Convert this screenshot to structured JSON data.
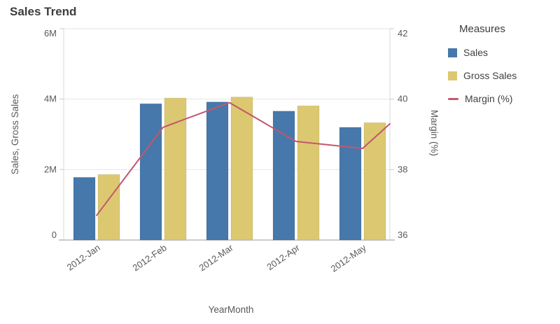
{
  "title": "Sales Trend",
  "legend": {
    "title": "Measures",
    "items": [
      {
        "label": "Sales",
        "swatch": "square",
        "color": "#4678ab"
      },
      {
        "label": "Gross Sales",
        "swatch": "square",
        "color": "#dcc870"
      },
      {
        "label": "Margin (%)",
        "swatch": "line",
        "color": "#c4566e"
      }
    ]
  },
  "chart_data": {
    "type": "combo",
    "title": "Sales Trend",
    "categories": [
      "2012-Jan",
      "2012-Feb",
      "2012-Mar",
      "2012-Apr",
      "2012-May"
    ],
    "x_axis": {
      "title": "YearMonth"
    },
    "left_axis": {
      "title": "Sales, Gross Sales",
      "tick_labels": [
        "0",
        "2M",
        "4M",
        "6M"
      ],
      "tick_values": [
        0,
        2000000,
        4000000,
        6000000
      ],
      "range": [
        0,
        6000000
      ]
    },
    "right_axis": {
      "title": "Margin (%)",
      "tick_labels": [
        "36",
        "38",
        "40",
        "42"
      ],
      "tick_values": [
        36,
        38,
        40,
        42
      ],
      "range": [
        36,
        42
      ]
    },
    "series": [
      {
        "name": "Sales",
        "type": "bar",
        "axis": "left",
        "color": "#4678ab",
        "values": [
          1780000,
          3870000,
          3920000,
          3660000,
          3200000
        ]
      },
      {
        "name": "Gross Sales",
        "type": "bar",
        "axis": "left",
        "color": "#dcc870",
        "values": [
          1860000,
          4030000,
          4060000,
          3810000,
          3330000
        ]
      },
      {
        "name": "Margin (%)",
        "type": "line",
        "axis": "right",
        "color": "#c4566e",
        "values": [
          36.7,
          39.2,
          39.9,
          38.8,
          38.6
        ],
        "edge_continuation_value": 39.3
      }
    ],
    "grid": true,
    "legend_position": "right",
    "colors": {
      "gridline": "#e6e6e6",
      "axis_border": "#d9d9d9",
      "baseline": "#cccccc",
      "tick_stub": "#c9c9c9",
      "tick_text": "#595959",
      "axis_title_text": "#595959"
    }
  }
}
